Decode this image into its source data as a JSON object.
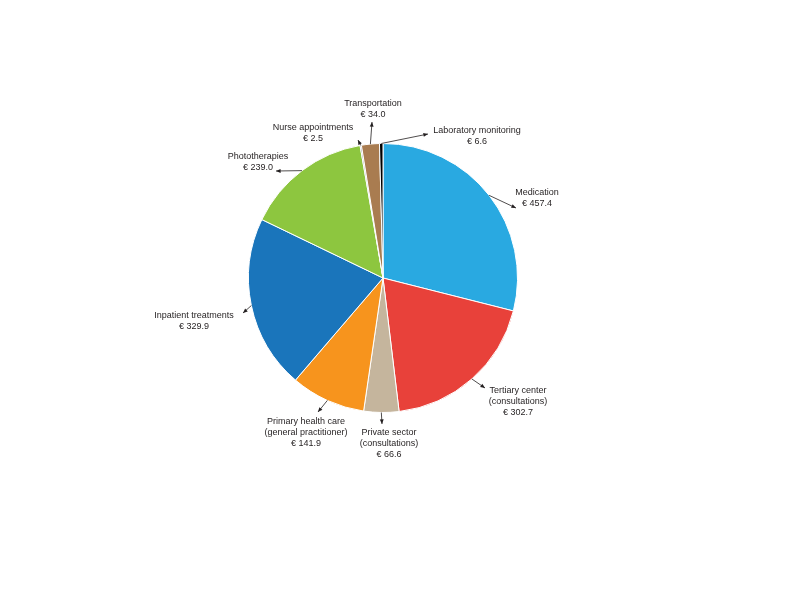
{
  "chart_data": {
    "type": "pie",
    "categories": [
      "Medication",
      "Tertiary center (consultations)",
      "Private sector (consultations)",
      "Primary health care (general practitioner)",
      "Inpatient treatments",
      "Phototherapies",
      "Nurse appointments",
      "Transportation",
      "Laboratory monitoring"
    ],
    "values": [
      457.4,
      302.7,
      66.6,
      141.9,
      329.9,
      239.0,
      2.5,
      34.0,
      6.6
    ],
    "value_labels": [
      "€ 457.4",
      "€ 302.7",
      "€ 66.6",
      "€ 141.9",
      "€ 329.9",
      "€ 239.0",
      "€ 2.5",
      "€ 34.0",
      "€ 6.6"
    ],
    "colors": [
      "#29a9e1",
      "#e8413a",
      "#c5b59d",
      "#f7941d",
      "#1a75bb",
      "#8dc63f",
      "#6d6e71",
      "#a97c50",
      "#000000"
    ],
    "data_labels": true,
    "legend": false
  }
}
